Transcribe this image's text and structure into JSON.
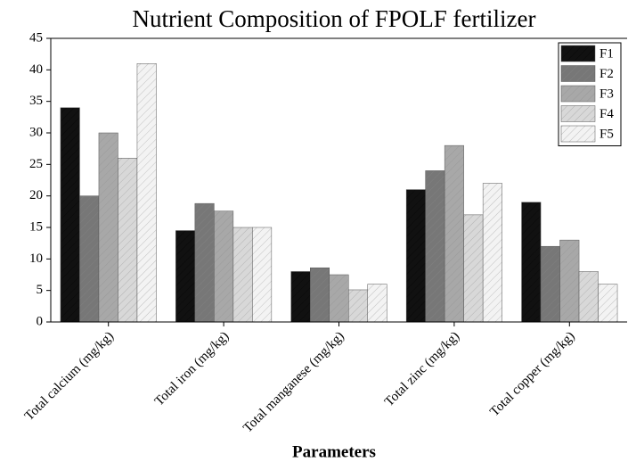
{
  "chart_data": {
    "type": "bar",
    "title": "Nutrient Composition of FPOLF fertilizer",
    "x_label": "Parameters",
    "categories": [
      "Total calcium (mg/kg)",
      "Total iron (mg/kg)",
      "Total manganese (mg/kg)",
      "Total zinc (mg/kg)",
      "Total copper (mg/kg)"
    ],
    "series": [
      {
        "name": "F1",
        "color": "#111111",
        "values": [
          34,
          14.5,
          8,
          21,
          19
        ]
      },
      {
        "name": "F2",
        "color": "#777777",
        "values": [
          20,
          18.8,
          8.6,
          24,
          12
        ]
      },
      {
        "name": "F3",
        "color": "#a8a8a8",
        "values": [
          30,
          17.6,
          7.5,
          28,
          13
        ]
      },
      {
        "name": "F4",
        "color": "#d8d8d8",
        "values": [
          26,
          15,
          5.1,
          17,
          8
        ]
      },
      {
        "name": "F5",
        "color": "#f3f3f3",
        "values": [
          41,
          15,
          6,
          22,
          6
        ]
      }
    ],
    "ylim": [
      0,
      45
    ],
    "yticks": [
      0,
      5,
      10,
      15,
      20,
      25,
      30,
      35,
      40,
      45
    ],
    "legend": "upper right"
  }
}
